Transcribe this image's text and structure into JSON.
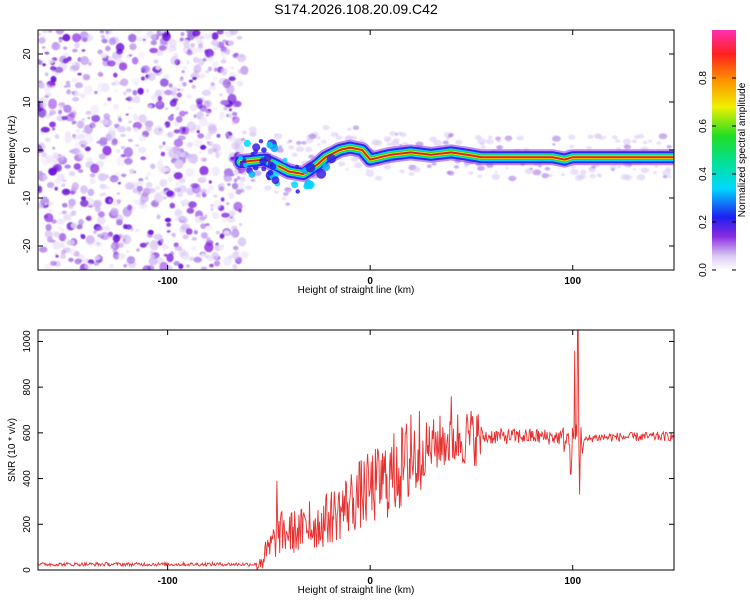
{
  "title": "S174.2026.108.20.09.C42",
  "colors": {
    "snr_line": "#e83030",
    "ridge": "#dd2222",
    "noise": "#8a2be2"
  },
  "chart_data": [
    {
      "type": "heatmap",
      "title": "S174.2026.108.20.09.C42",
      "xlabel": "Height of straight line (km)",
      "ylabel": "Frequency (Hz)",
      "xlim": [
        -164,
        150
      ],
      "ylim": [
        -25,
        25
      ],
      "x_ticks": [
        {
          "value": -100,
          "label": "-100"
        },
        {
          "value": 0,
          "label": "0"
        },
        {
          "value": 100,
          "label": "100"
        }
      ],
      "y_ticks": [
        {
          "value": -20,
          "label": "-20"
        },
        {
          "value": -10,
          "label": "-10"
        },
        {
          "value": 0,
          "label": "0"
        },
        {
          "value": 10,
          "label": "10"
        },
        {
          "value": 20,
          "label": "20"
        }
      ],
      "noise_region_x": [
        -164,
        -65
      ],
      "ridge": {
        "x": [
          -64,
          -52,
          -47,
          -40,
          -33,
          -26,
          -22,
          -15,
          -10,
          -4,
          0,
          10,
          20,
          30,
          40,
          48,
          55,
          70,
          90,
          96,
          100,
          110,
          130,
          150
        ],
        "y": [
          -2.5,
          -2,
          -3,
          -4.5,
          -5,
          -3,
          -1.5,
          0,
          0.5,
          0,
          -2,
          -1,
          -0.5,
          -1,
          -0.5,
          -1,
          -1.5,
          -1.5,
          -1.5,
          -2,
          -1.5,
          -1.5,
          -1.5,
          -1.5
        ]
      },
      "colorbar": {
        "label": "Normalized spectral amplitude",
        "range": [
          0.0,
          1.0
        ],
        "ticks": [
          {
            "value": 0.0,
            "label": "0.0"
          },
          {
            "value": 0.2,
            "label": "0.2"
          },
          {
            "value": 0.4,
            "label": "0.4"
          },
          {
            "value": 0.6,
            "label": "0.6"
          },
          {
            "value": 0.8,
            "label": "0.8"
          }
        ]
      }
    },
    {
      "type": "line",
      "xlabel": "Height of straight line (km)",
      "ylabel": "SNR (10 * v/v)",
      "xlim": [
        -164,
        150
      ],
      "ylim": [
        0,
        1050
      ],
      "x_ticks": [
        {
          "value": -100,
          "label": "-100"
        },
        {
          "value": 0,
          "label": "0"
        },
        {
          "value": 100,
          "label": "100"
        }
      ],
      "y_ticks": [
        {
          "value": 0,
          "label": "0"
        },
        {
          "value": 200,
          "label": "200"
        },
        {
          "value": 400,
          "label": "400"
        },
        {
          "value": 600,
          "label": "600"
        },
        {
          "value": 800,
          "label": "800"
        },
        {
          "value": 1000,
          "label": "1000"
        }
      ],
      "series": [
        {
          "name": "SNR",
          "trend_x": [
            -164,
            -56,
            -52,
            -45,
            -35,
            -25,
            -15,
            -5,
            5,
            15,
            25,
            35,
            45,
            60,
            80,
            95,
            100,
            102,
            105,
            110,
            150
          ],
          "trend_y": [
            25,
            25,
            60,
            160,
            170,
            200,
            260,
            330,
            380,
            440,
            520,
            560,
            580,
            585,
            585,
            580,
            560,
            600,
            560,
            580,
            585
          ],
          "spikes": [
            {
              "x": -46,
              "y": 390
            },
            {
              "x": -30,
              "y": 300
            },
            {
              "x": 13,
              "y": 540
            },
            {
              "x": 20,
              "y": 680
            },
            {
              "x": 40,
              "y": 760
            },
            {
              "x": 102.5,
              "y": 1050
            },
            {
              "x": 101,
              "y": 960
            },
            {
              "x": 103.5,
              "y": 330
            },
            {
              "x": 99,
              "y": 420
            }
          ]
        }
      ]
    }
  ]
}
